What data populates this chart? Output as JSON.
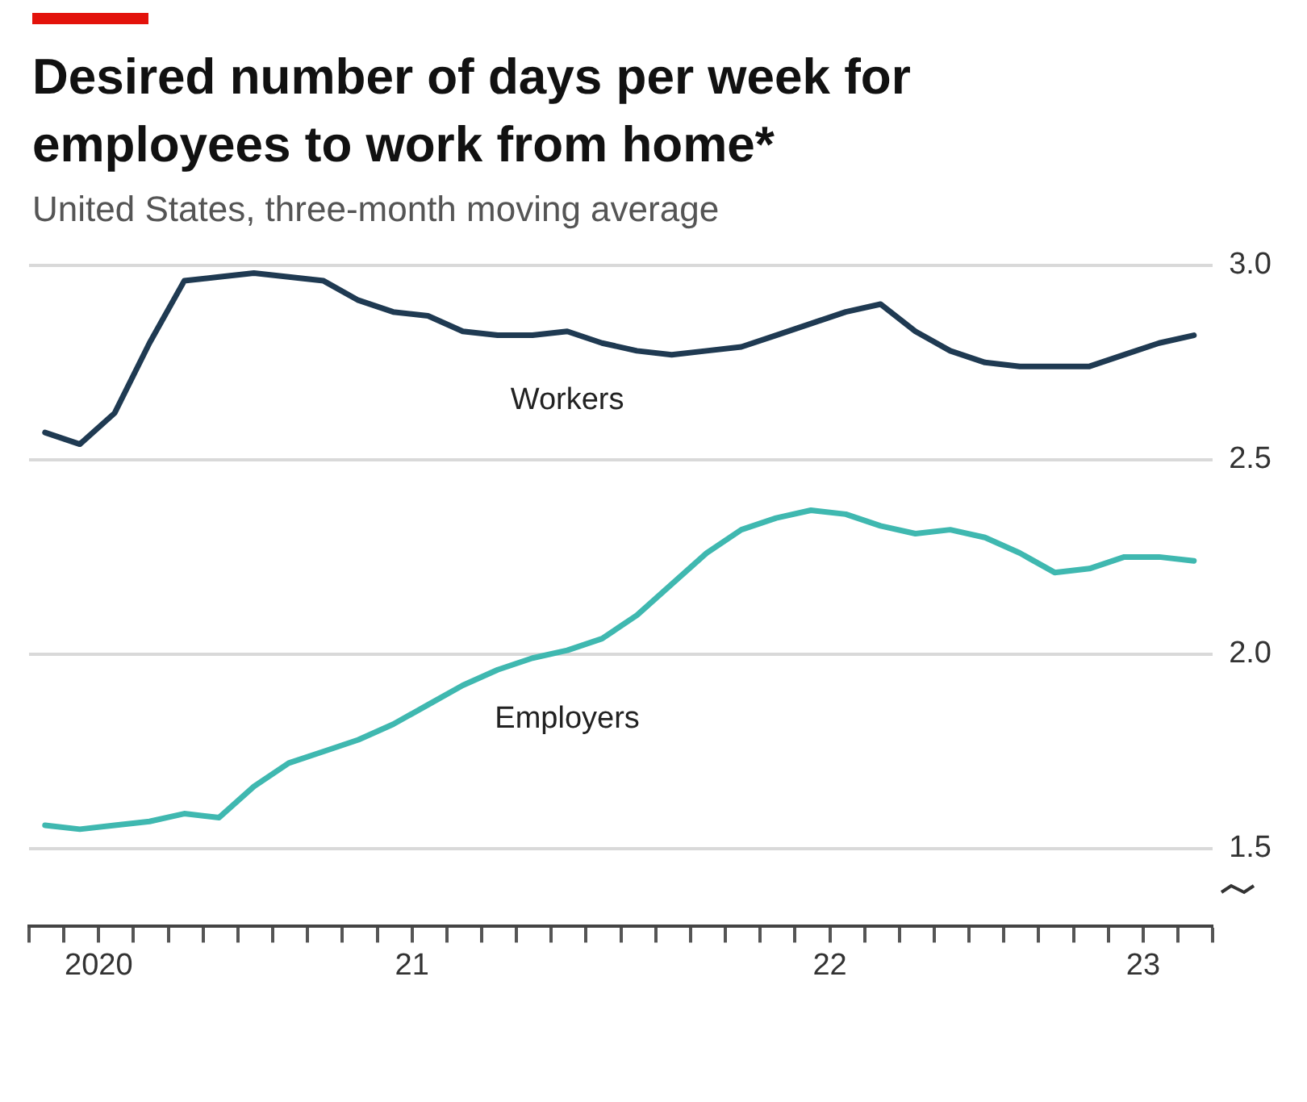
{
  "chart_data": {
    "type": "line",
    "title": "Desired number of days per week for employees to work from home*",
    "subtitle": "United States, three-month moving average",
    "x": [
      "2020-08-15",
      "2020-09-15",
      "2020-10-15",
      "2020-11-15",
      "2020-12-15",
      "2021-01-15",
      "2021-02-15",
      "2021-03-15",
      "2021-04-15",
      "2021-05-15",
      "2021-06-15",
      "2021-07-15",
      "2021-08-15",
      "2021-09-15",
      "2021-10-15",
      "2021-11-15",
      "2021-12-15",
      "2022-01-15",
      "2022-02-15",
      "2022-03-15",
      "2022-04-15",
      "2022-05-15",
      "2022-06-15",
      "2022-07-15",
      "2022-08-15",
      "2022-09-15",
      "2022-10-15",
      "2022-11-15",
      "2022-12-15",
      "2023-01-15",
      "2023-02-15",
      "2023-03-15",
      "2023-04-15",
      "2023-05-15"
    ],
    "series": [
      {
        "name": "Workers",
        "color": "#1f3a52",
        "values": [
          2.57,
          2.54,
          2.62,
          2.8,
          2.96,
          2.97,
          2.98,
          2.97,
          2.96,
          2.91,
          2.88,
          2.87,
          2.83,
          2.82,
          2.82,
          2.83,
          2.8,
          2.78,
          2.77,
          2.78,
          2.79,
          2.82,
          2.85,
          2.88,
          2.9,
          2.83,
          2.78,
          2.75,
          2.74,
          2.74,
          2.74,
          2.77,
          2.8,
          2.82
        ]
      },
      {
        "name": "Employers",
        "color": "#3fb8b0",
        "values": [
          1.56,
          1.55,
          1.56,
          1.57,
          1.59,
          1.58,
          1.66,
          1.72,
          1.75,
          1.78,
          1.82,
          1.87,
          1.92,
          1.96,
          1.99,
          2.01,
          2.04,
          2.1,
          2.18,
          2.26,
          2.32,
          2.35,
          2.37,
          2.36,
          2.33,
          2.31,
          2.32,
          2.3,
          2.26,
          2.21,
          2.22,
          2.25,
          2.25,
          2.24
        ]
      }
    ],
    "xlim": [
      "2020-08",
      "2023-06"
    ],
    "xticks": [
      {
        "value": "2020-08",
        "label": null
      },
      {
        "value": "2020-09",
        "label": null
      },
      {
        "value": "2020-10",
        "label": "2020"
      },
      {
        "value": "2020-11",
        "label": null
      },
      {
        "value": "2020-12",
        "label": null
      },
      {
        "value": "2021-01",
        "label": null
      },
      {
        "value": "2021-02",
        "label": null
      },
      {
        "value": "2021-03",
        "label": null
      },
      {
        "value": "2021-04",
        "label": null
      },
      {
        "value": "2021-05",
        "label": null
      },
      {
        "value": "2021-06",
        "label": null
      },
      {
        "value": "2021-07",
        "label": "21"
      },
      {
        "value": "2021-08",
        "label": null
      },
      {
        "value": "2021-09",
        "label": null
      },
      {
        "value": "2021-10",
        "label": null
      },
      {
        "value": "2021-11",
        "label": null
      },
      {
        "value": "2021-12",
        "label": null
      },
      {
        "value": "2022-01",
        "label": null
      },
      {
        "value": "2022-02",
        "label": null
      },
      {
        "value": "2022-03",
        "label": null
      },
      {
        "value": "2022-04",
        "label": null
      },
      {
        "value": "2022-05",
        "label": null
      },
      {
        "value": "2022-06",
        "label": null
      },
      {
        "value": "2022-07",
        "label": "22"
      },
      {
        "value": "2022-08",
        "label": null
      },
      {
        "value": "2022-09",
        "label": null
      },
      {
        "value": "2022-10",
        "label": null
      },
      {
        "value": "2022-11",
        "label": null
      },
      {
        "value": "2022-12",
        "label": null
      },
      {
        "value": "2023-01",
        "label": null
      },
      {
        "value": "2023-02",
        "label": null
      },
      {
        "value": "2023-03",
        "label": null
      },
      {
        "value": "2023-04",
        "label": "23"
      },
      {
        "value": "2023-05",
        "label": null
      },
      {
        "value": "2023-06",
        "label": null
      }
    ],
    "ylim": [
      1.3,
      3.0
    ],
    "yticks": [
      {
        "value": 1.5,
        "label": "1.5"
      },
      {
        "value": 2.0,
        "label": "2.0"
      },
      {
        "value": 2.5,
        "label": "2.5"
      },
      {
        "value": 3.0,
        "label": "3.0"
      }
    ],
    "grid": "y",
    "legend": false,
    "marker": "none",
    "line_style": "solid"
  }
}
